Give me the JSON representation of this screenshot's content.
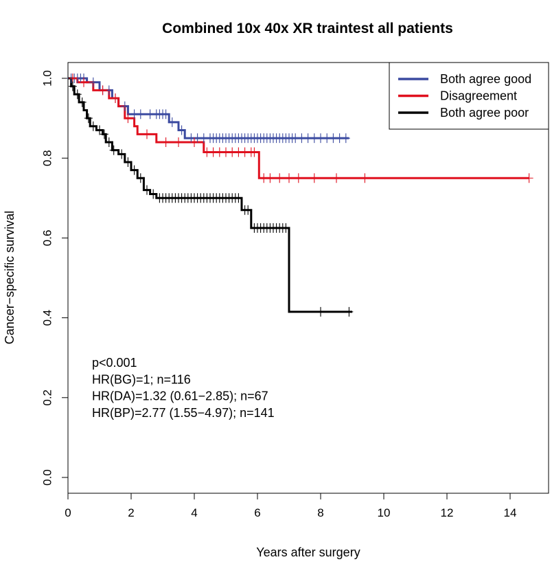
{
  "chart_data": {
    "type": "line",
    "subtype": "kaplan-meier step curves with censor marks",
    "title": "Combined 10x 40x XR traintest all patients",
    "xlabel": "Years after surgery",
    "ylabel": "Cancer−specific survival",
    "xlim": [
      0,
      15
    ],
    "ylim": [
      0,
      1
    ],
    "x_ticks": [
      0,
      2,
      4,
      6,
      8,
      10,
      12,
      14
    ],
    "x_tick_labels": [
      "0",
      "2",
      "4",
      "6",
      "8",
      "10",
      "12",
      "14"
    ],
    "y_ticks": [
      0.0,
      0.2,
      0.4,
      0.6,
      0.8,
      1.0
    ],
    "y_tick_labels": [
      "0.0",
      "0.2",
      "0.4",
      "0.6",
      "0.8",
      "1.0"
    ],
    "legend_position": "top-right",
    "series": [
      {
        "name": "Both agree good",
        "color": "#3b4aa0",
        "steps": [
          [
            0,
            1.0
          ],
          [
            0.6,
            0.99
          ],
          [
            1.0,
            0.97
          ],
          [
            1.4,
            0.95
          ],
          [
            1.6,
            0.93
          ],
          [
            1.9,
            0.91
          ],
          [
            3.2,
            0.89
          ],
          [
            3.5,
            0.87
          ],
          [
            3.7,
            0.85
          ],
          [
            8.9,
            0.85
          ]
        ],
        "censor_x": [
          0.1,
          0.2,
          0.3,
          0.4,
          0.5,
          0.8,
          1.1,
          1.3,
          1.5,
          1.8,
          2.1,
          2.3,
          2.6,
          2.8,
          2.9,
          3.0,
          3.1,
          3.3,
          3.6,
          3.9,
          4.1,
          4.3,
          4.5,
          4.6,
          4.7,
          4.8,
          4.9,
          5.0,
          5.1,
          5.2,
          5.3,
          5.4,
          5.5,
          5.6,
          5.7,
          5.8,
          5.9,
          6.0,
          6.1,
          6.2,
          6.3,
          6.4,
          6.5,
          6.6,
          6.7,
          6.8,
          6.9,
          7.0,
          7.1,
          7.2,
          7.4,
          7.6,
          7.8,
          8.0,
          8.2,
          8.4,
          8.6,
          8.8
        ]
      },
      {
        "name": "Disagreement",
        "color": "#e0101e",
        "steps": [
          [
            0,
            1.0
          ],
          [
            0.3,
            0.99
          ],
          [
            0.8,
            0.97
          ],
          [
            1.3,
            0.95
          ],
          [
            1.6,
            0.93
          ],
          [
            1.8,
            0.9
          ],
          [
            2.1,
            0.88
          ],
          [
            2.2,
            0.86
          ],
          [
            2.8,
            0.84
          ],
          [
            4.3,
            0.815
          ],
          [
            6.05,
            0.75
          ],
          [
            14.6,
            0.75
          ]
        ],
        "censor_x": [
          0.15,
          0.5,
          1.1,
          1.5,
          1.9,
          2.5,
          3.1,
          3.5,
          4.0,
          4.4,
          4.6,
          4.8,
          5.0,
          5.2,
          5.4,
          5.6,
          5.8,
          5.9,
          6.2,
          6.4,
          6.7,
          7.0,
          7.3,
          7.8,
          8.5,
          9.4,
          14.6
        ]
      },
      {
        "name": "Both agree poor",
        "color": "#000000",
        "steps": [
          [
            0,
            1.0
          ],
          [
            0.1,
            0.98
          ],
          [
            0.2,
            0.96
          ],
          [
            0.35,
            0.94
          ],
          [
            0.5,
            0.92
          ],
          [
            0.6,
            0.9
          ],
          [
            0.7,
            0.88
          ],
          [
            0.9,
            0.87
          ],
          [
            1.1,
            0.86
          ],
          [
            1.2,
            0.84
          ],
          [
            1.4,
            0.82
          ],
          [
            1.6,
            0.81
          ],
          [
            1.8,
            0.79
          ],
          [
            2.0,
            0.77
          ],
          [
            2.2,
            0.75
          ],
          [
            2.4,
            0.72
          ],
          [
            2.6,
            0.71
          ],
          [
            2.8,
            0.7
          ],
          [
            5.5,
            0.67
          ],
          [
            5.8,
            0.625
          ],
          [
            7.0,
            0.415
          ],
          [
            9.0,
            0.415
          ]
        ],
        "censor_x": [
          0.15,
          0.3,
          0.45,
          0.65,
          0.8,
          1.0,
          1.15,
          1.3,
          1.45,
          1.7,
          1.9,
          2.1,
          2.3,
          2.5,
          2.7,
          2.9,
          3.0,
          3.1,
          3.2,
          3.3,
          3.4,
          3.5,
          3.6,
          3.7,
          3.8,
          3.9,
          4.0,
          4.1,
          4.2,
          4.3,
          4.4,
          4.5,
          4.6,
          4.7,
          4.8,
          4.9,
          5.0,
          5.1,
          5.2,
          5.3,
          5.4,
          5.6,
          5.7,
          5.9,
          6.0,
          6.1,
          6.2,
          6.3,
          6.4,
          6.5,
          6.6,
          6.7,
          6.8,
          6.9,
          8.0,
          8.9
        ]
      }
    ],
    "annotations": [
      "p<0.001",
      "HR(BG)=1; n=116",
      "HR(DA)=1.32 (0.61−2.85); n=67",
      "HR(BP)=2.77 (1.55−4.97); n=141"
    ]
  }
}
